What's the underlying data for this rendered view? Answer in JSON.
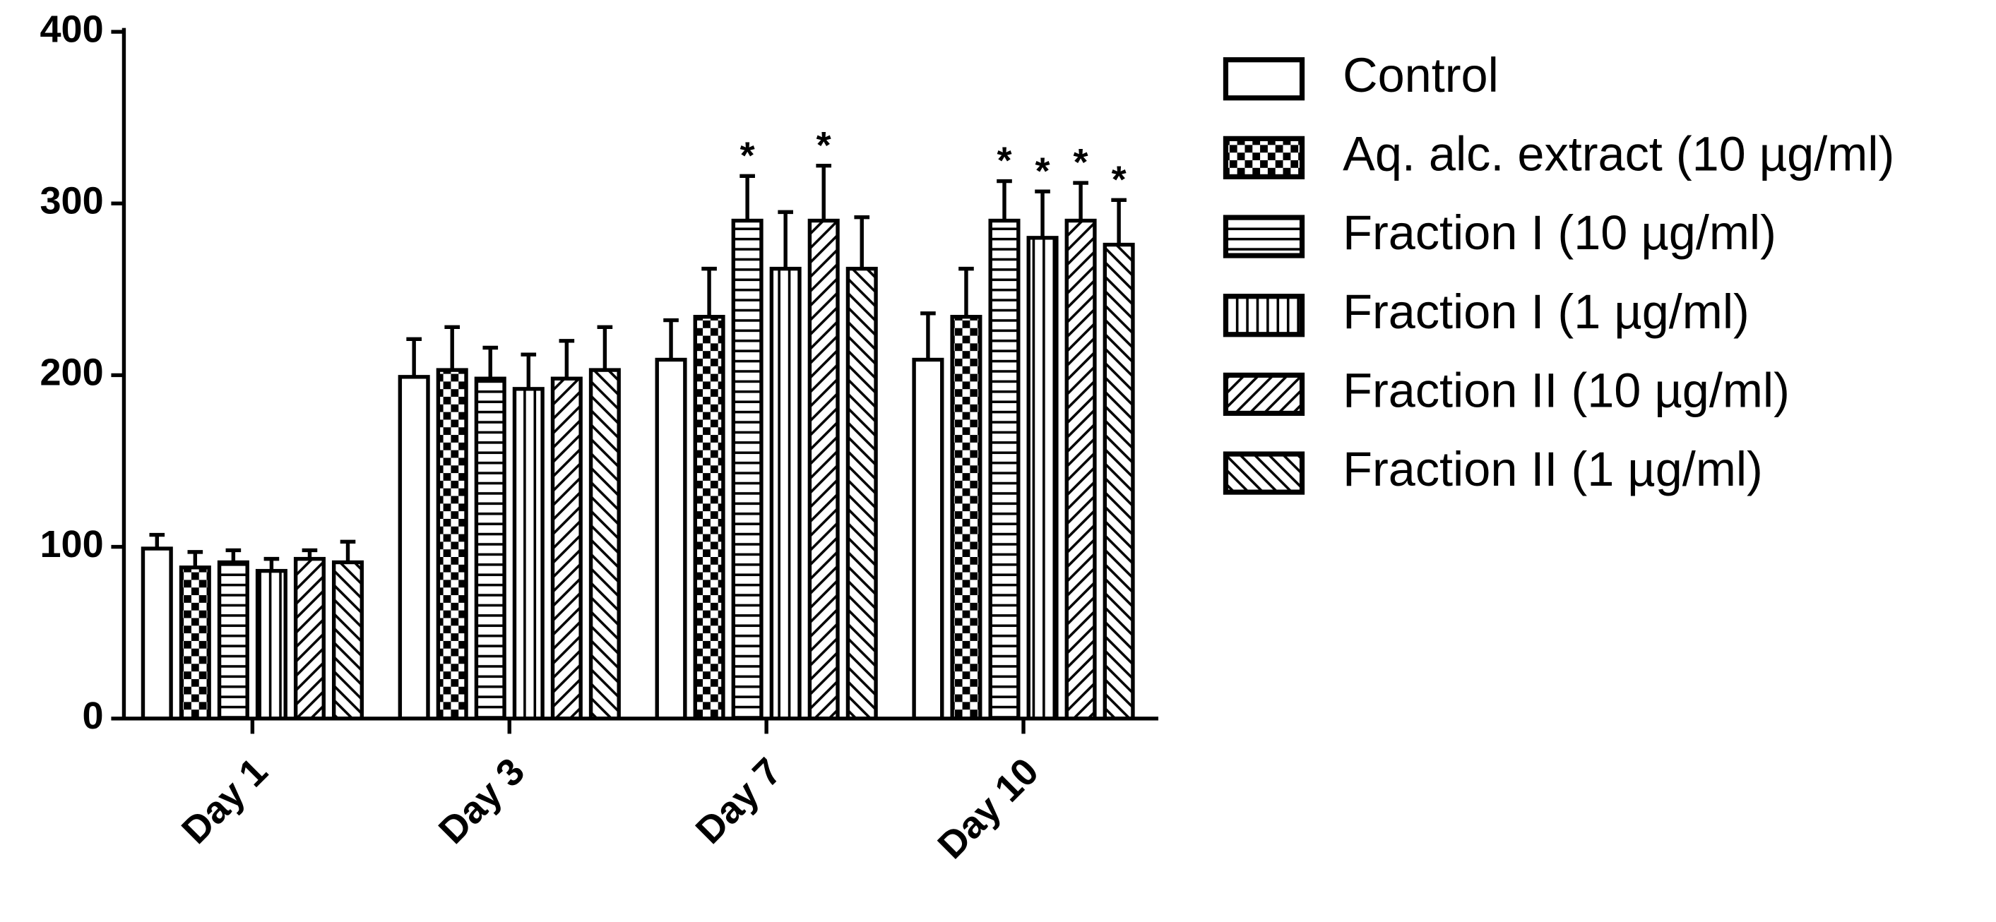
{
  "chart_data": {
    "type": "bar",
    "categories": [
      "Day 1",
      "Day 3",
      "Day 7",
      "Day 10"
    ],
    "ylim": [
      0,
      400
    ],
    "yticks": [
      0,
      100,
      200,
      300,
      400
    ],
    "series": [
      {
        "name": "Control",
        "color": "#000000",
        "pattern": "none",
        "values": [
          99,
          199,
          209,
          209
        ],
        "errors": [
          8,
          22,
          23,
          27
        ],
        "annotations": [
          null,
          null,
          null,
          null
        ]
      },
      {
        "name": "Aq. alc. extract (10 µg/ml)",
        "color": "#000000",
        "pattern": "checker",
        "values": [
          88,
          203,
          234,
          234
        ],
        "errors": [
          9,
          25,
          28,
          28
        ],
        "annotations": [
          null,
          null,
          null,
          null
        ]
      },
      {
        "name": "Fraction I (10 µg/ml)",
        "color": "#000000",
        "pattern": "horizontal",
        "values": [
          91,
          198,
          290,
          290
        ],
        "errors": [
          7,
          18,
          26,
          23
        ],
        "annotations": [
          null,
          null,
          "*",
          "*"
        ]
      },
      {
        "name": "Fraction I (1 µg/ml)",
        "color": "#000000",
        "pattern": "vertical",
        "values": [
          86,
          192,
          262,
          280
        ],
        "errors": [
          7,
          20,
          33,
          27
        ],
        "annotations": [
          null,
          null,
          null,
          "*"
        ]
      },
      {
        "name": "Fraction II (10 µg/ml)",
        "color": "#000000",
        "pattern": "diagonal-up",
        "values": [
          93,
          198,
          290,
          290
        ],
        "errors": [
          5,
          22,
          32,
          22
        ],
        "annotations": [
          null,
          null,
          "*",
          "*"
        ]
      },
      {
        "name": "Fraction II (1 µg/ml)",
        "color": "#000000",
        "pattern": "diagonal-down",
        "values": [
          91,
          203,
          262,
          276
        ],
        "errors": [
          12,
          25,
          30,
          26
        ],
        "annotations": [
          null,
          null,
          null,
          "*"
        ]
      }
    ]
  }
}
